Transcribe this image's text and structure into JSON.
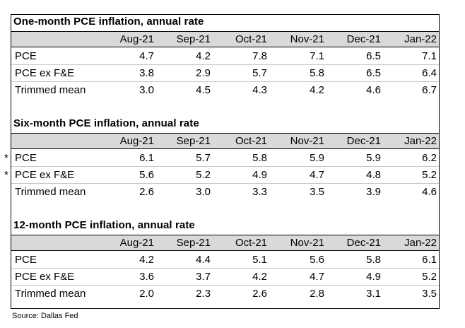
{
  "columns": [
    "Aug-21",
    "Sep-21",
    "Oct-21",
    "Nov-21",
    "Dec-21",
    "Jan-22"
  ],
  "sections": [
    {
      "title": "One-month PCE inflation, annual rate",
      "rows": [
        {
          "label": "PCE",
          "marker": "",
          "values": [
            "4.7",
            "4.2",
            "7.8",
            "7.1",
            "6.5",
            "7.1"
          ]
        },
        {
          "label": "PCE ex F&E",
          "marker": "",
          "values": [
            "3.8",
            "2.9",
            "5.7",
            "5.8",
            "6.5",
            "6.4"
          ]
        },
        {
          "label": "Trimmed mean",
          "marker": "",
          "values": [
            "3.0",
            "4.5",
            "4.3",
            "4.2",
            "4.6",
            "6.7"
          ]
        }
      ]
    },
    {
      "title": "Six-month PCE inflation, annual rate",
      "rows": [
        {
          "label": "PCE",
          "marker": "*",
          "values": [
            "6.1",
            "5.7",
            "5.8",
            "5.9",
            "5.9",
            "6.2"
          ]
        },
        {
          "label": "PCE ex F&E",
          "marker": "*",
          "values": [
            "5.6",
            "5.2",
            "4.9",
            "4.7",
            "4.8",
            "5.2"
          ]
        },
        {
          "label": "Trimmed mean",
          "marker": "",
          "values": [
            "2.6",
            "3.0",
            "3.3",
            "3.5",
            "3.9",
            "4.6"
          ]
        }
      ]
    },
    {
      "title": "12-month PCE inflation, annual rate",
      "rows": [
        {
          "label": "PCE",
          "marker": "",
          "values": [
            "4.2",
            "4.4",
            "5.1",
            "5.6",
            "5.8",
            "6.1"
          ]
        },
        {
          "label": "PCE ex F&E",
          "marker": "",
          "values": [
            "3.6",
            "3.7",
            "4.2",
            "4.7",
            "4.9",
            "5.2"
          ]
        },
        {
          "label": "Trimmed mean",
          "marker": "",
          "values": [
            "2.0",
            "2.3",
            "2.6",
            "2.8",
            "3.1",
            "3.5"
          ]
        }
      ]
    }
  ],
  "source": "Source: Dallas Fed"
}
